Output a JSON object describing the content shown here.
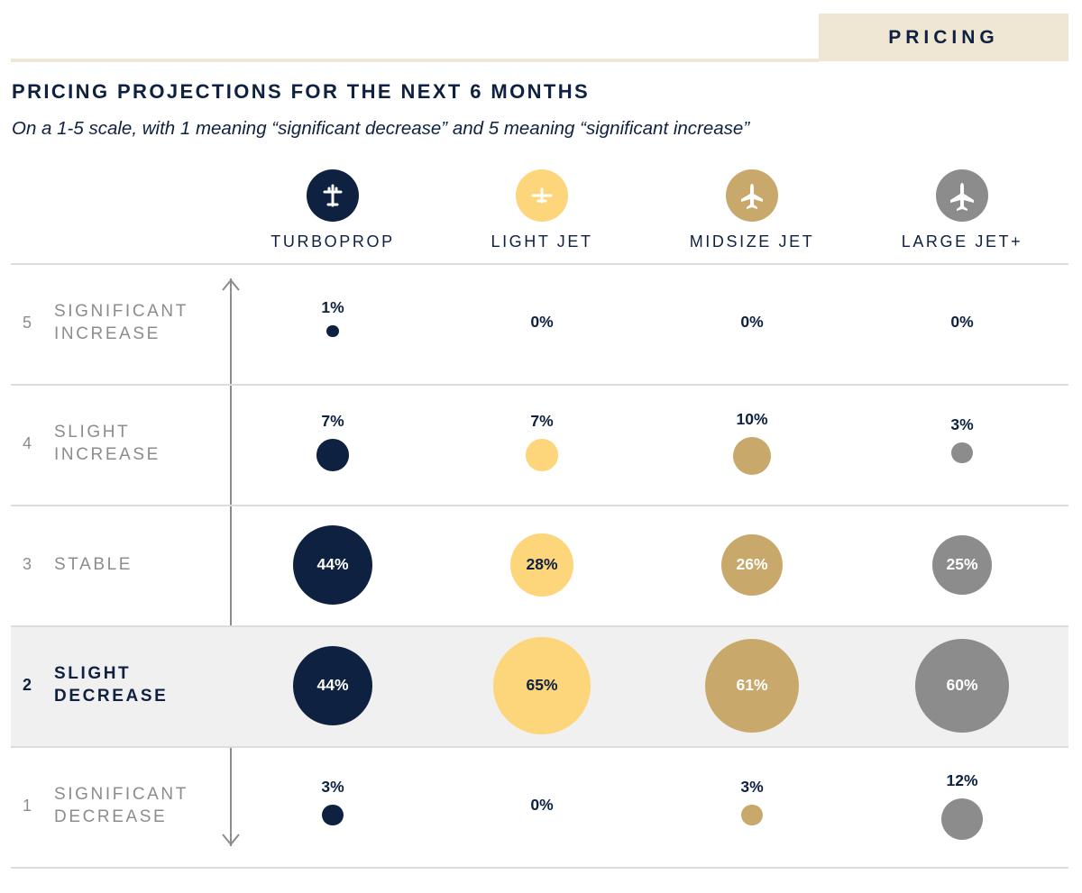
{
  "header": {
    "tab_label": "PRICING",
    "tab_color": "#efe6d4"
  },
  "chart_data": {
    "type": "bubble-matrix",
    "title": "PRICING PROJECTIONS FOR THE NEXT 6 MONTHS",
    "subtitle": "On a 1-5 scale, with 1 meaning “significant decrease” and 5 meaning “significant increase”",
    "columns": [
      {
        "name": "TURBOPROP",
        "color": "#0e2140",
        "icon": "turboprop-icon"
      },
      {
        "name": "LIGHT JET",
        "color": "#fdd57a",
        "icon": "light-jet-icon"
      },
      {
        "name": "MIDSIZE JET",
        "color": "#c8a96b",
        "icon": "midsize-jet-icon"
      },
      {
        "name": "LARGE JET+",
        "color": "#8c8c8c",
        "icon": "large-jet-icon"
      }
    ],
    "rows": [
      {
        "scale": "5",
        "label": "SIGNIFICANT\nINCREASE",
        "highlight": false,
        "values": [
          1,
          0,
          0,
          0
        ]
      },
      {
        "scale": "4",
        "label": "SLIGHT\nINCREASE",
        "highlight": false,
        "values": [
          7,
          7,
          10,
          3
        ]
      },
      {
        "scale": "3",
        "label": "STABLE",
        "highlight": false,
        "values": [
          44,
          28,
          26,
          25
        ]
      },
      {
        "scale": "2",
        "label": "SLIGHT\nDECREASE",
        "highlight": true,
        "values": [
          44,
          65,
          61,
          60
        ]
      },
      {
        "scale": "1",
        "label": "SIGNIFICANT\nDECREASE",
        "highlight": false,
        "values": [
          3,
          0,
          3,
          12
        ]
      }
    ],
    "value_suffix": "%",
    "highlight_color": "#f0f0f0",
    "axis_color": "#8c8c8c"
  }
}
